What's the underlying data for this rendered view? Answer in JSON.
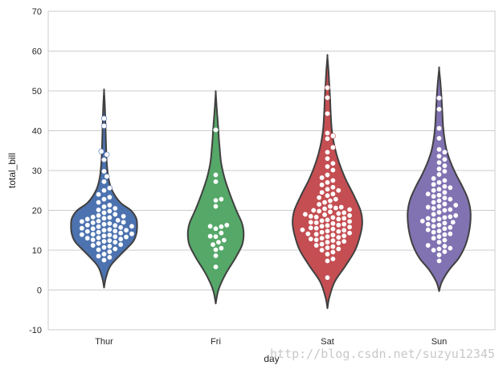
{
  "chart_data": {
    "type": "violin",
    "xlabel": "day",
    "ylabel": "total_bill",
    "categories": [
      "Thur",
      "Fri",
      "Sat",
      "Sun"
    ],
    "ylim": [
      -10,
      70
    ],
    "yticks": [
      -10,
      0,
      10,
      20,
      30,
      40,
      50,
      60,
      70
    ],
    "grid": true,
    "colors": {
      "Thur": "#4c72b0",
      "Fri": "#55a868",
      "Sat": "#c44e52",
      "Sun": "#8172b2",
      "outline": "#404040",
      "points": "#ffffff",
      "grid": "#cccccc"
    },
    "violins": [
      {
        "category": "Thur",
        "y_min": 0.6,
        "y_max": 50.0,
        "profile": [
          [
            0.6,
            0
          ],
          [
            3,
            0.04
          ],
          [
            6,
            0.14
          ],
          [
            9,
            0.38
          ],
          [
            12,
            0.64
          ],
          [
            14,
            0.72
          ],
          [
            16,
            0.74
          ],
          [
            18,
            0.72
          ],
          [
            20,
            0.6
          ],
          [
            22,
            0.36
          ],
          [
            25,
            0.18
          ],
          [
            28,
            0.1
          ],
          [
            32,
            0.06
          ],
          [
            36,
            0.045
          ],
          [
            40,
            0.035
          ],
          [
            44,
            0.025
          ],
          [
            47,
            0.015
          ],
          [
            50,
            0
          ]
        ],
        "values": [
          7.5,
          8.2,
          8.5,
          9.0,
          9.6,
          10.1,
          10.3,
          10.7,
          11.0,
          11.2,
          11.4,
          11.7,
          12.0,
          12.2,
          12.4,
          12.6,
          12.8,
          13.0,
          13.1,
          13.3,
          13.4,
          13.6,
          13.8,
          13.9,
          14.0,
          14.1,
          14.3,
          14.5,
          14.7,
          14.8,
          15.0,
          15.0,
          15.2,
          15.4,
          15.5,
          15.7,
          15.9,
          16.0,
          16.2,
          16.3,
          16.5,
          16.7,
          16.9,
          17.0,
          17.2,
          17.3,
          17.5,
          17.8,
          18.0,
          18.2,
          18.3,
          18.5,
          18.7,
          19.0,
          19.4,
          19.8,
          20.1,
          20.5,
          20.9,
          21.3,
          22.0,
          22.8,
          23.3,
          24.0,
          25.0,
          25.6,
          27.2,
          28.5,
          29.8,
          32.7,
          34.0,
          34.8,
          41.2,
          43.1
        ]
      },
      {
        "category": "Fri",
        "y_min": -3.4,
        "y_max": 49.5,
        "profile": [
          [
            -3.4,
            0
          ],
          [
            0,
            0.06
          ],
          [
            4,
            0.22
          ],
          [
            8,
            0.44
          ],
          [
            11,
            0.58
          ],
          [
            13,
            0.62
          ],
          [
            15,
            0.62
          ],
          [
            17,
            0.58
          ],
          [
            20,
            0.46
          ],
          [
            24,
            0.32
          ],
          [
            28,
            0.2
          ],
          [
            32,
            0.12
          ],
          [
            36,
            0.085
          ],
          [
            38,
            0.07
          ],
          [
            40,
            0.06
          ],
          [
            43,
            0.04
          ],
          [
            46,
            0.02
          ],
          [
            49.5,
            0
          ]
        ],
        "values": [
          5.8,
          8.6,
          10.1,
          10.5,
          11.4,
          12.0,
          12.5,
          13.4,
          13.5,
          14.3,
          15.4,
          15.9,
          16.0,
          16.3,
          21.0,
          22.5,
          22.8,
          27.2,
          28.9,
          40.2
        ]
      },
      {
        "category": "Sat",
        "y_min": -4.6,
        "y_max": 58.6,
        "profile": [
          [
            -4.6,
            0
          ],
          [
            -2,
            0.04
          ],
          [
            2,
            0.16
          ],
          [
            6,
            0.4
          ],
          [
            10,
            0.62
          ],
          [
            14,
            0.74
          ],
          [
            17,
            0.78
          ],
          [
            20,
            0.74
          ],
          [
            24,
            0.58
          ],
          [
            28,
            0.4
          ],
          [
            32,
            0.26
          ],
          [
            36,
            0.16
          ],
          [
            40,
            0.1
          ],
          [
            44,
            0.075
          ],
          [
            48,
            0.06
          ],
          [
            52,
            0.04
          ],
          [
            55,
            0.025
          ],
          [
            58.6,
            0
          ]
        ],
        "values": [
          3.1,
          7.3,
          7.8,
          9.0,
          9.5,
          10.0,
          10.3,
          10.6,
          10.9,
          11.2,
          11.5,
          11.8,
          12.0,
          12.2,
          12.4,
          12.6,
          12.8,
          13.0,
          13.2,
          13.4,
          13.6,
          13.8,
          14.0,
          14.1,
          14.3,
          14.5,
          14.7,
          14.8,
          15.0,
          15.1,
          15.3,
          15.5,
          15.6,
          15.8,
          16.0,
          16.2,
          16.3,
          16.5,
          16.7,
          16.9,
          17.0,
          17.2,
          17.4,
          17.6,
          17.8,
          18.0,
          18.2,
          18.3,
          18.5,
          18.7,
          18.9,
          19.0,
          19.2,
          19.4,
          19.6,
          19.8,
          20.0,
          20.2,
          20.4,
          20.6,
          20.8,
          21.0,
          21.5,
          22.0,
          22.4,
          22.8,
          23.2,
          23.7,
          24.1,
          24.5,
          25.0,
          25.3,
          25.8,
          26.4,
          27.0,
          27.5,
          28.2,
          28.9,
          30.1,
          31.0,
          31.8,
          33.0,
          34.6,
          35.8,
          38.0,
          38.7,
          39.4,
          44.3,
          48.3,
          50.8
        ]
      },
      {
        "category": "Sun",
        "y_min": -0.3,
        "y_max": 55.5,
        "profile": [
          [
            -0.3,
            0
          ],
          [
            2,
            0.06
          ],
          [
            5,
            0.22
          ],
          [
            8,
            0.44
          ],
          [
            11,
            0.58
          ],
          [
            14,
            0.66
          ],
          [
            17,
            0.7
          ],
          [
            20,
            0.7
          ],
          [
            23,
            0.64
          ],
          [
            26,
            0.52
          ],
          [
            29,
            0.38
          ],
          [
            32,
            0.26
          ],
          [
            35,
            0.17
          ],
          [
            38,
            0.12
          ],
          [
            41,
            0.09
          ],
          [
            45,
            0.07
          ],
          [
            49,
            0.05
          ],
          [
            52,
            0.03
          ],
          [
            55.5,
            0
          ]
        ],
        "values": [
          7.3,
          8.8,
          9.6,
          10.0,
          10.3,
          10.5,
          11.0,
          11.2,
          12.0,
          12.5,
          13.0,
          13.4,
          13.9,
          14.1,
          14.5,
          14.8,
          15.1,
          15.4,
          15.7,
          16.0,
          16.3,
          16.5,
          16.8,
          17.0,
          17.3,
          17.5,
          17.8,
          18.0,
          18.2,
          18.4,
          18.7,
          19.0,
          19.5,
          20.0,
          20.2,
          20.5,
          20.8,
          21.0,
          21.3,
          21.6,
          22.0,
          22.4,
          22.8,
          23.1,
          23.5,
          23.8,
          24.1,
          24.5,
          25.0,
          25.3,
          25.7,
          26.0,
          26.5,
          27.0,
          27.5,
          28.0,
          29.0,
          29.8,
          30.4,
          31.2,
          32.0,
          32.8,
          33.6,
          34.6,
          35.3,
          38.1,
          40.6,
          45.4,
          48.2
        ]
      }
    ]
  },
  "watermark": "http://blog.csdn.net/suzyu12345"
}
